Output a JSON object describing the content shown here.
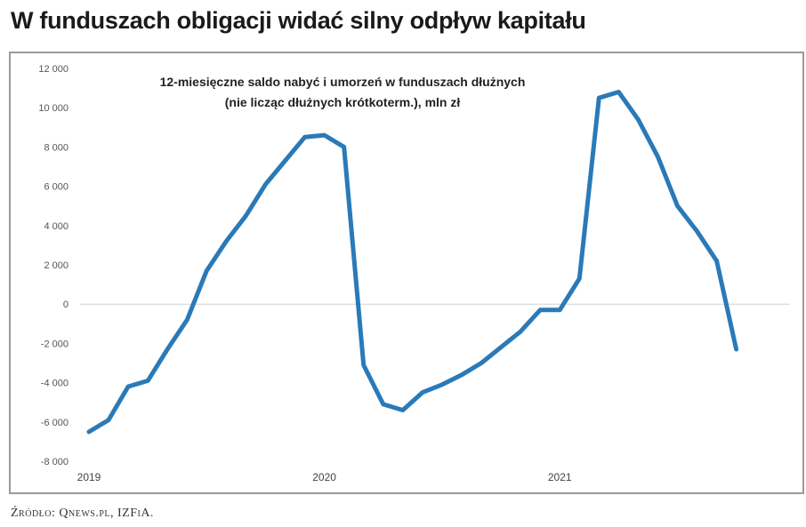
{
  "headline": "W funduszach obligacji widać silny odpływ kapitału",
  "source": "Źródło: Qnews.pl, IZFiA.",
  "chart_data": {
    "type": "line",
    "title": "12-miesięczne saldo nabyć i umorzeń w funduszach dłużnych",
    "subtitle": "(nie licząc dłużnych krótkoterm.), mln zł",
    "xlabel": "",
    "ylabel": "",
    "ylim": [
      -8000,
      12000
    ],
    "yticks": [
      12000,
      10000,
      8000,
      6000,
      4000,
      2000,
      0,
      -2000,
      -4000,
      -6000,
      -8000
    ],
    "ytick_labels": [
      "12 000",
      "10 000",
      "8 000",
      "6 000",
      "4 000",
      "2 000",
      "0",
      "-2 000",
      "-4 000",
      "-6 000",
      "-8 000"
    ],
    "xtick_labels": [
      {
        "label": "2019",
        "month_index": 0
      },
      {
        "label": "2020",
        "month_index": 12
      },
      {
        "label": "2021",
        "month_index": 24
      }
    ],
    "grid": false,
    "series": [
      {
        "name": "saldo",
        "color": "#2a7ab8",
        "x_start": "2019-01",
        "values": [
          -6500,
          -5900,
          -4200,
          -3900,
          -2300,
          -800,
          1700,
          3200,
          4500,
          6100,
          7300,
          8500,
          8600,
          8000,
          -3100,
          -5100,
          -5400,
          -4500,
          -4100,
          -3600,
          -3000,
          -2200,
          -1400,
          -300,
          -300,
          1300,
          10500,
          10800,
          9400,
          7500,
          5000,
          3700,
          2200,
          -2300
        ]
      }
    ]
  }
}
